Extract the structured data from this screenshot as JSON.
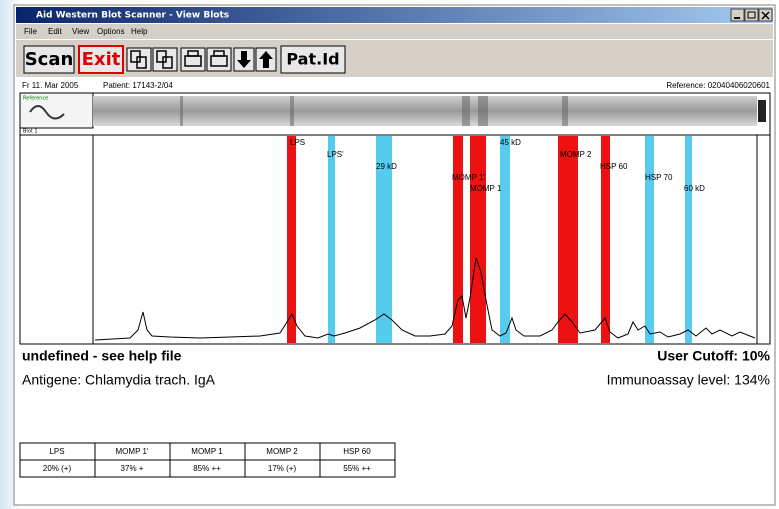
{
  "window": {
    "title": "Aid Western Blot Scanner - View Blots"
  },
  "menu": [
    "File",
    "Edit",
    "View",
    "Options",
    "Help"
  ],
  "toolbar": {
    "scan": "Scan",
    "exit": "Exit",
    "patient_id": "Pat.Id"
  },
  "info": {
    "date": "Fr 11. Mar 2005",
    "patient": "Patient: 17143-2/04",
    "reference": "Reference: 02040406020601"
  },
  "strip": {
    "reference_label": "Reference",
    "blot_label": "Blot 1"
  },
  "bands": [
    "LPS",
    "LPS'",
    "29 kD",
    "MOMP 1'",
    "MOMP 1",
    "45 kD",
    "MOMP 2",
    "HSP 60",
    "HSP 70",
    "60 kD"
  ],
  "result": {
    "status": "undefined - see help file",
    "cutoff": "User Cutoff: 10%",
    "antigen": "Antigene: Chlamydia trach. IgA",
    "level": "Immunoassay level: 134%"
  },
  "table": {
    "header": [
      "LPS",
      "MOMP 1'",
      "MOMP 1",
      "MOMP 2",
      "HSP 60"
    ],
    "rows": [
      [
        "20% (+)",
        "37% +",
        "85% ++",
        "17% (+)",
        "55% ++"
      ]
    ]
  }
}
